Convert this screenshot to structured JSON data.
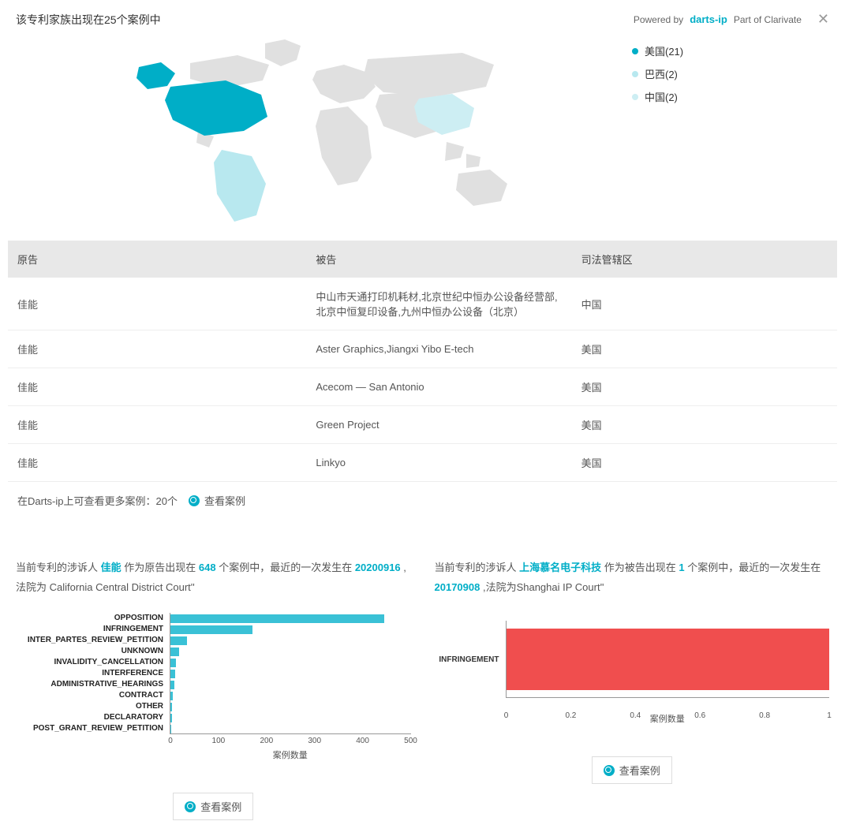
{
  "header": {
    "title": "该专利家族出现在25个案例中",
    "powered_by": "Powered by",
    "brand": "darts-ip",
    "tagline": "Part of Clarivate"
  },
  "map": {
    "legend": [
      {
        "label": "美国(21)",
        "color": "#00aec7"
      },
      {
        "label": "巴西(2)",
        "color": "#b8e8ef"
      },
      {
        "label": "中国(2)",
        "color": "#cdeef3"
      }
    ],
    "land_color": "#e0e0e0",
    "na_color": "#00aec7",
    "sa_color": "#b8e8ef",
    "cn_color": "#cdeef3"
  },
  "table": {
    "columns": [
      "原告",
      "被告",
      "司法管辖区"
    ],
    "rows": [
      [
        "佳能",
        "中山市天通打印机耗材,北京世纪中恒办公设备经营部,北京中恒复印设备,九州中恒办公设备（北京）",
        "中国"
      ],
      [
        "佳能",
        "Aster Graphics,Jiangxi Yibo E-tech",
        "美国"
      ],
      [
        "佳能",
        "Acecom — San Antonio",
        "美国"
      ],
      [
        "佳能",
        "Green Project",
        "美国"
      ],
      [
        "佳能",
        "Linkyo",
        "美国"
      ]
    ],
    "more_text": "在Darts-ip上可查看更多案例：20个",
    "view_label": "查看案例"
  },
  "chart_left": {
    "desc_parts": {
      "p1": "当前专利的涉诉人 ",
      "entity": "佳能",
      "p2": " 作为原告出现在 ",
      "count": "648",
      "p3": " 个案例中，最近的一次发生在 ",
      "date": "20200916",
      "p4": " ,法院为 California Central District Court''"
    },
    "type": "bar",
    "categories": [
      "OPPOSITION",
      "INFRINGEMENT",
      "INTER_PARTES_REVIEW_PETITION",
      "UNKNOWN",
      "INVALIDITY_CANCELLATION",
      "INTERFERENCE",
      "ADMINISTRATIVE_HEARINGS",
      "CONTRACT",
      "OTHER",
      "DECLARATORY",
      "POST_GRANT_REVIEW_PETITION"
    ],
    "values": [
      445,
      170,
      35,
      18,
      12,
      10,
      8,
      5,
      4,
      3,
      2
    ],
    "bar_color": "#3ac1d6",
    "xmax": 500,
    "xticks": [
      0,
      100,
      200,
      300,
      400,
      500
    ],
    "xlabel": "案例数量",
    "view_label": "查看案例"
  },
  "chart_right": {
    "desc_parts": {
      "p1": "当前专利的涉诉人 ",
      "entity": "上海慕名电子科技",
      "p2": " 作为被告出现在 ",
      "count": "1",
      "p3": " 个案例中，最近的一次发生在 ",
      "date": "20170908",
      "p4": " ,法院为Shanghai IP Court''"
    },
    "type": "bar",
    "categories": [
      "INFRINGEMENT"
    ],
    "values": [
      1
    ],
    "bar_color": "#f04e4e",
    "xmax": 1,
    "xticks": [
      0,
      0.2,
      0.4,
      0.6,
      0.8,
      1
    ],
    "xlabel": "案例数量",
    "view_label": "查看案例"
  }
}
